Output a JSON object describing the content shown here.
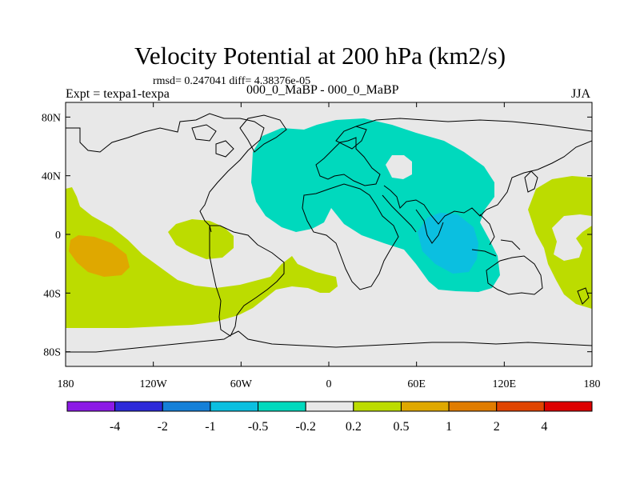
{
  "header": {
    "title": "Velocity Potential at 200 hPa (km2/s)",
    "stats": "rmsd= 0.247041 diff= 4.38376e-05",
    "expt": "Expt = texpa1-texpa",
    "case": "000_0_MaBP - 000_0_MaBP",
    "season": "JJA"
  },
  "chart_data": {
    "type": "heatmap",
    "title": "Velocity Potential at 200 hPa (km2/s)",
    "xlabel": "",
    "ylabel": "",
    "xlim": [
      -180,
      180
    ],
    "ylim": [
      -90,
      90
    ],
    "x_ticks": [
      {
        "value": -180,
        "label": "180"
      },
      {
        "value": -120,
        "label": "120W"
      },
      {
        "value": -60,
        "label": "60W"
      },
      {
        "value": 0,
        "label": "0"
      },
      {
        "value": 60,
        "label": "60E"
      },
      {
        "value": 120,
        "label": "120E"
      },
      {
        "value": 180,
        "label": "180"
      }
    ],
    "y_ticks": [
      {
        "value": 80,
        "label": "80N"
      },
      {
        "value": 40,
        "label": "40N"
      },
      {
        "value": 0,
        "label": "0"
      },
      {
        "value": -40,
        "label": "40S"
      },
      {
        "value": -80,
        "label": "80S"
      }
    ],
    "colorbar": {
      "labels": [
        "-4",
        "-2",
        "-1",
        "-0.5",
        "-0.2",
        "0.2",
        "0.5",
        "1",
        "2",
        "4"
      ],
      "colors": [
        "#8c1ae6",
        "#2d2ad9",
        "#1580d8",
        "#0bbfe0",
        "#00d9bd",
        "#e8e8e8",
        "#bcdc00",
        "#dfa800",
        "#e07c00",
        "#e04400",
        "#dd0000"
      ]
    },
    "regions": [
      {
        "level": "-0.5 to -0.2",
        "color": "#00d9bd",
        "description": "Eurasia / Middle East / Indian Ocean"
      },
      {
        "level": "-1 to -0.5",
        "color": "#0bbfe0",
        "description": "Indian Ocean center"
      },
      {
        "level": "0.2 to 0.5",
        "color": "#bcdc00",
        "description": "Pacific / Western Pacific / South Atlantic"
      },
      {
        "level": "0.5 to 1",
        "color": "#dfa800",
        "description": "Central Pacific"
      }
    ]
  }
}
